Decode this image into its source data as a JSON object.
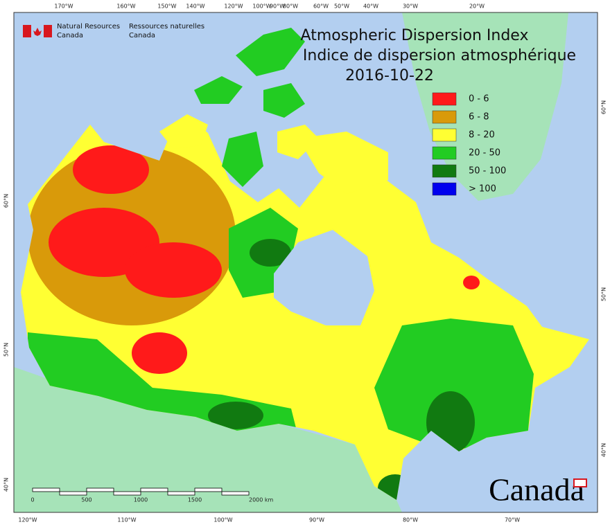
{
  "header": {
    "agency_en": [
      "Natural Resources",
      "Canada"
    ],
    "agency_fr": [
      "Ressources naturelles",
      "Canada"
    ]
  },
  "title": [
    "Atmospheric Dispersion Index",
    "Indice de dispersion atmosphérique"
  ],
  "date": "2016-10-22",
  "legend": [
    {
      "label": "0 - 6",
      "color": "#ff1a1a"
    },
    {
      "label": "6 - 8",
      "color": "#d99a0a"
    },
    {
      "label": "8 - 20",
      "color": "#ffff33"
    },
    {
      "label": "20 - 50",
      "color": "#22cc22"
    },
    {
      "label": "50 - 100",
      "color": "#117a11"
    },
    {
      "label": "> 100",
      "color": "#0000ee"
    }
  ],
  "top_labels": [
    "170°W",
    "160°W",
    "150°W",
    "140°W",
    "120°W",
    "100°W",
    "90°W",
    "80°W",
    "60°W",
    "50°W",
    "40°W",
    "30°W",
    "20°W"
  ],
  "bottom_labels": [
    "120°W",
    "110°W",
    "100°W",
    "90°W",
    "80°W",
    "70°W"
  ],
  "left_labels": [
    "60°N",
    "50°N",
    "40°N"
  ],
  "right_labels": [
    "60°N",
    "50°N",
    "40°N"
  ],
  "scale_labels": [
    "0",
    "500",
    "1000",
    "1500",
    "2000 km"
  ],
  "wordmark": "Canada"
}
